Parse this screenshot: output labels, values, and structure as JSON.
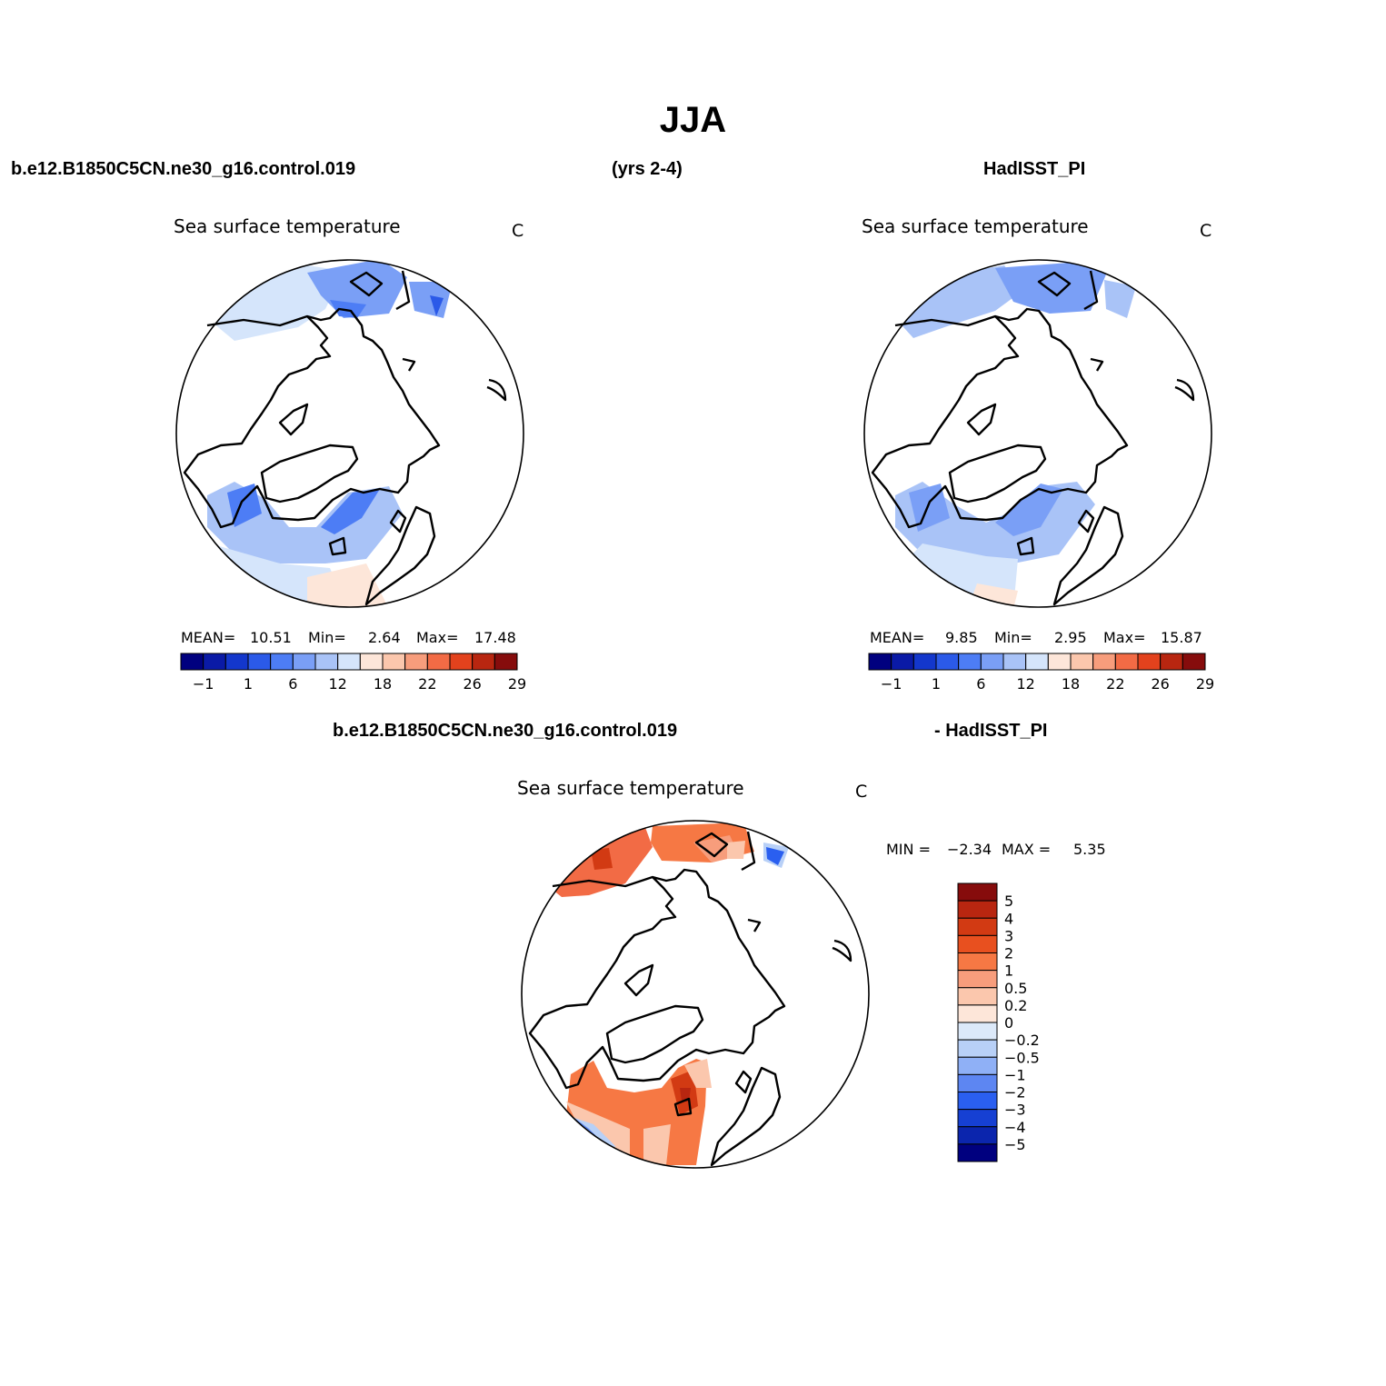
{
  "title": "JJA",
  "header": {
    "case_name": "b.e12.B1850C5CN.ne30_g16.control.019",
    "years": "(yrs 2-4)",
    "obs_name": "HadISST_PI"
  },
  "diff_header": {
    "case_name": "b.e12.B1850C5CN.ne30_g16.control.019",
    "obs_name": "- HadISST_PI"
  },
  "panels": [
    {
      "variable": "Sea surface temperature",
      "units": "C",
      "mean_label": "MEAN=",
      "mean": "10.51",
      "min_label": "Min=",
      "min": "2.64",
      "max_label": "Max=",
      "max": "17.48"
    },
    {
      "variable": "Sea surface temperature",
      "units": "C",
      "mean_label": "MEAN=",
      "mean": "9.85",
      "min_label": "Min=",
      "min": "2.95",
      "max_label": "Max=",
      "max": "15.87"
    },
    {
      "variable": "Sea surface temperature",
      "units": "C",
      "min_label": "MIN =",
      "min": "−2.34",
      "max_label": "MAX =",
      "max": "5.35"
    }
  ],
  "sst_colorbar": {
    "colors": [
      "#00007f",
      "#0a1aa6",
      "#1337cc",
      "#2b5ae8",
      "#4d7df5",
      "#7a9ff6",
      "#a9c3f7",
      "#d5e5fb",
      "#fde6d9",
      "#fbc7ad",
      "#f79d7c",
      "#f26b45",
      "#e3421d",
      "#b82610",
      "#860c0c"
    ],
    "tick_labels": [
      "−1",
      "1",
      "6",
      "12",
      "18",
      "22",
      "26",
      "29"
    ]
  },
  "diff_colorbar": {
    "colors": [
      "#860c0c",
      "#b82610",
      "#d23a13",
      "#e8501f",
      "#f67844",
      "#f79d7c",
      "#fbc7ad",
      "#fde6d9",
      "#dce9f9",
      "#b8d0f7",
      "#8fb0f6",
      "#5d86f2",
      "#2a5ff0",
      "#1640d3",
      "#0b25ad",
      "#00007f"
    ],
    "tick_labels": [
      "5",
      "4",
      "3",
      "2",
      "1",
      "0.5",
      "0.2",
      "0",
      "−0.2",
      "−0.5",
      "−1",
      "−2",
      "−3",
      "−4",
      "−5"
    ]
  }
}
